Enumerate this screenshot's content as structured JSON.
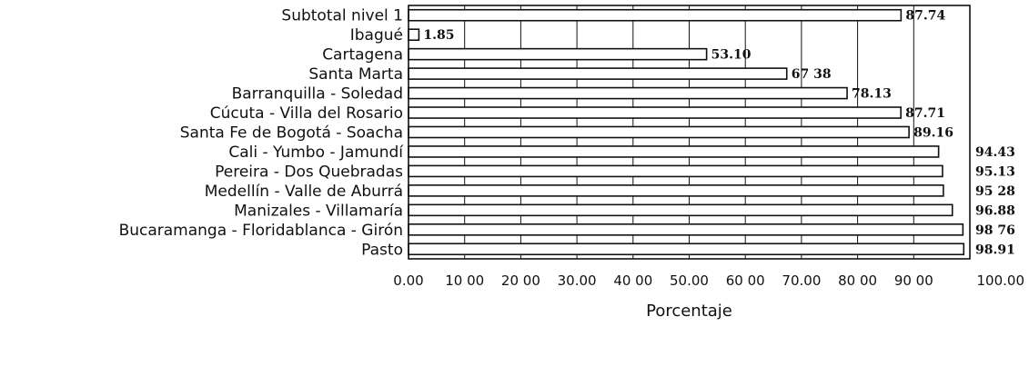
{
  "chart_data": {
    "type": "bar",
    "orientation": "horizontal",
    "categories": [
      "Subtotal nivel 1",
      "Ibagué",
      "Cartagena",
      "Santa Marta",
      "Barranquilla - Soledad",
      "Cúcuta - Villa del Rosario",
      "Santa Fe de Bogotá - Soacha",
      "Cali - Yumbo - Jamundí",
      "Pereira - Dos Quebradas",
      "Medellín - Valle de Aburrá",
      "Manizales - Villamaría",
      "Bucaramanga - Floridablanca - Girón",
      "Pasto"
    ],
    "values": [
      87.74,
      1.85,
      53.1,
      67.38,
      78.13,
      87.71,
      89.16,
      94.43,
      95.13,
      95.28,
      96.88,
      98.76,
      98.91
    ],
    "value_labels": [
      "87.74",
      "1.85",
      "53.10",
      "67 38",
      "78.13",
      "87.71",
      "89.16",
      "94.43",
      "95.13",
      "95 28",
      "96.88",
      "98 76",
      "98.91"
    ],
    "xticks": [
      "0.00",
      "10 00",
      "20 00",
      "30.00",
      "40 00",
      "50.00",
      "60 00",
      "70.00",
      "80 00",
      "90 00",
      "100.00"
    ],
    "xlim": [
      0,
      100
    ],
    "xlabel": "Porcentaje",
    "title": "",
    "grid": true
  }
}
